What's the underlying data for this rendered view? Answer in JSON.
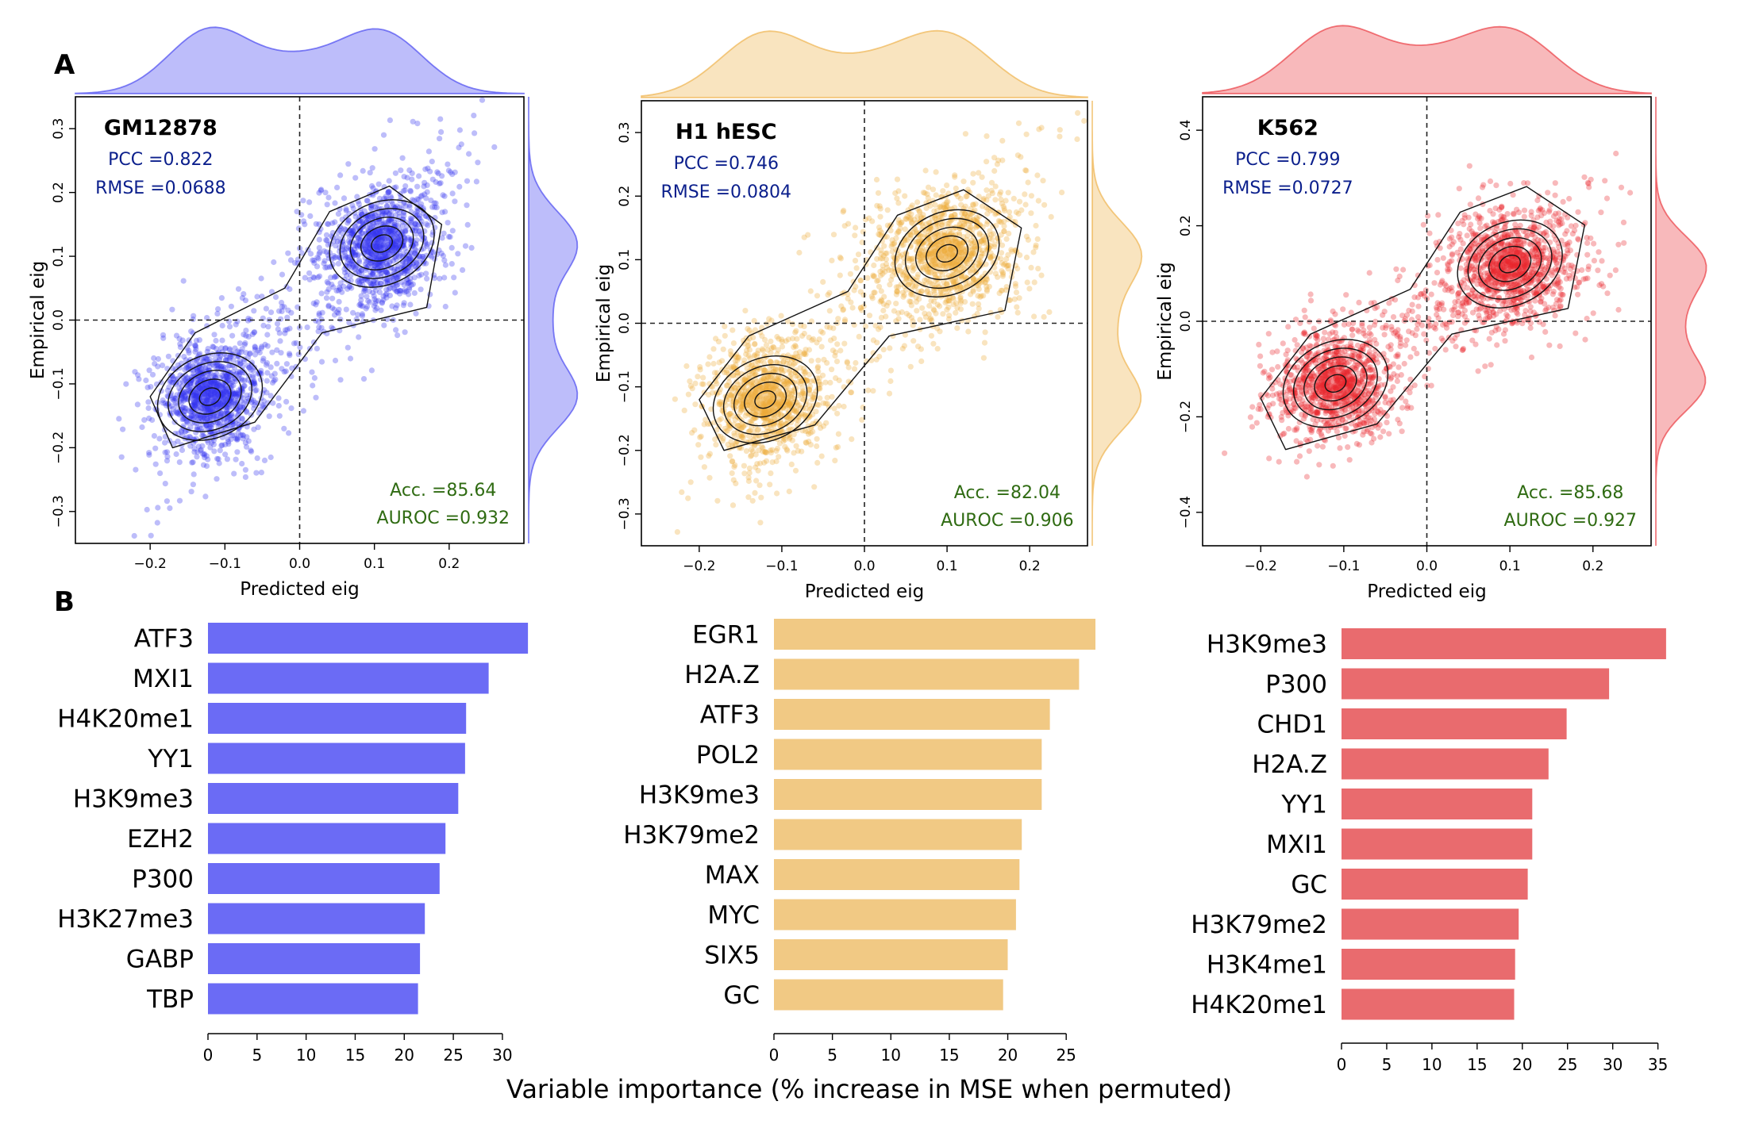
{
  "panel_labels": {
    "a": "A",
    "b": "B"
  },
  "global_xlabel": "Variable importance (% increase in MSE when permuted)",
  "colors": {
    "gm12878": "#3333ee",
    "h1hesc": "#ecaa38",
    "k562": "#e8252b",
    "gm12878_bar": "#6b6bf5",
    "h1hesc_bar": "#f1c984",
    "k562_bar": "#e96b6e",
    "metric_text": "#0b1f8c",
    "acc_text": "#2f6b12"
  },
  "scatter_panels": [
    {
      "title": "GM12878",
      "pcc_label": "PCC =0.822",
      "rmse_label": "RMSE =0.0688",
      "acc_label": "Acc. =85.64",
      "auroc_label": "AUROC =0.932",
      "xlabel": "Predicted eig",
      "ylabel": "Empirical eig",
      "xticks": [
        "−0.2",
        "−0.1",
        "0.0",
        "0.1",
        "0.2"
      ],
      "yticks": [
        "−0.3",
        "−0.2",
        "−0.1",
        "0.0",
        "0.1",
        "0.2",
        "0.3"
      ]
    },
    {
      "title": "H1 hESC",
      "pcc_label": "PCC =0.746",
      "rmse_label": "RMSE =0.0804",
      "acc_label": "Acc. =82.04",
      "auroc_label": "AUROC =0.906",
      "xlabel": "Predicted eig",
      "ylabel": "Empirical eig",
      "xticks": [
        "−0.2",
        "−0.1",
        "0.0",
        "0.1",
        "0.2"
      ],
      "yticks": [
        "−0.3",
        "−0.2",
        "−0.1",
        "0.0",
        "0.1",
        "0.2",
        "0.3"
      ]
    },
    {
      "title": "K562",
      "pcc_label": "PCC =0.799",
      "rmse_label": "RMSE =0.0727",
      "acc_label": "Acc. =85.68",
      "auroc_label": "AUROC =0.927",
      "xlabel": "Predicted eig",
      "ylabel": "Empirical eig",
      "xticks": [
        "−0.2",
        "−0.1",
        "0.0",
        "0.1",
        "0.2"
      ],
      "yticks": [
        "−0.4",
        "−0.2",
        "0.0",
        "0.2",
        "0.4"
      ]
    }
  ],
  "chart_data": [
    {
      "type": "scatter",
      "title": "GM12878",
      "xlabel": "Predicted eig",
      "ylabel": "Empirical eig",
      "xlim": [
        -0.3,
        0.3
      ],
      "ylim": [
        -0.35,
        0.35
      ],
      "pcc": 0.822,
      "rmse": 0.0688,
      "accuracy": 85.64,
      "auroc": 0.932,
      "clusters": [
        {
          "center": [
            -0.12,
            -0.12
          ],
          "sd": [
            0.035,
            0.035
          ]
        },
        {
          "center": [
            0.11,
            0.12
          ],
          "sd": [
            0.04,
            0.04
          ]
        }
      ],
      "reference_lines": {
        "x": 0,
        "y": 0
      }
    },
    {
      "type": "scatter",
      "title": "H1 hESC",
      "xlabel": "Predicted eig",
      "ylabel": "Empirical eig",
      "xlim": [
        -0.27,
        0.27
      ],
      "ylim": [
        -0.35,
        0.35
      ],
      "pcc": 0.746,
      "rmse": 0.0804,
      "accuracy": 82.04,
      "auroc": 0.906,
      "clusters": [
        {
          "center": [
            -0.12,
            -0.12
          ],
          "sd": [
            0.035,
            0.04
          ]
        },
        {
          "center": [
            0.1,
            0.11
          ],
          "sd": [
            0.045,
            0.04
          ]
        }
      ],
      "reference_lines": {
        "x": 0,
        "y": 0
      }
    },
    {
      "type": "scatter",
      "title": "K562",
      "xlabel": "Predicted eig",
      "ylabel": "Empirical eig",
      "xlim": [
        -0.27,
        0.27
      ],
      "ylim": [
        -0.47,
        0.47
      ],
      "pcc": 0.799,
      "rmse": 0.0727,
      "accuracy": 85.68,
      "auroc": 0.927,
      "clusters": [
        {
          "center": [
            -0.11,
            -0.13
          ],
          "sd": [
            0.035,
            0.05
          ]
        },
        {
          "center": [
            0.1,
            0.12
          ],
          "sd": [
            0.04,
            0.05
          ]
        }
      ],
      "reference_lines": {
        "x": 0,
        "y": 0
      }
    },
    {
      "type": "bar",
      "orientation": "horizontal",
      "categories": [
        "ATF3",
        "MXI1",
        "H4K20me1",
        "YY1",
        "H3K9me3",
        "EZH2",
        "P300",
        "H3K27me3",
        "GABP",
        "TBP"
      ],
      "values": [
        32.6,
        28.6,
        26.3,
        26.2,
        25.5,
        24.2,
        23.6,
        22.1,
        21.6,
        21.4
      ],
      "xticks": [
        "0",
        "5",
        "10",
        "15",
        "20",
        "25",
        "30"
      ],
      "xlim": [
        0,
        33
      ],
      "color": "#6b6bf5"
    },
    {
      "type": "bar",
      "orientation": "horizontal",
      "categories": [
        "EGR1",
        "H2A.Z",
        "ATF3",
        "POL2",
        "H3K9me3",
        "H3K79me2",
        "MAX",
        "MYC",
        "SIX5",
        "GC"
      ],
      "values": [
        27.5,
        26.1,
        23.6,
        22.9,
        22.9,
        21.2,
        21.0,
        20.7,
        20.0,
        19.6
      ],
      "xticks": [
        "0",
        "5",
        "10",
        "15",
        "20",
        "25"
      ],
      "xlim": [
        0,
        27.5
      ],
      "color": "#f1c984"
    },
    {
      "type": "bar",
      "orientation": "horizontal",
      "categories": [
        "H3K9me3",
        "P300",
        "CHD1",
        "H2A.Z",
        "YY1",
        "MXI1",
        "GC",
        "H3K79me2",
        "H3K4me1",
        "H4K20me1"
      ],
      "values": [
        35.9,
        29.6,
        24.9,
        22.9,
        21.1,
        21.1,
        20.6,
        19.6,
        19.2,
        19.1
      ],
      "xticks": [
        "0",
        "5",
        "10",
        "15",
        "20",
        "25",
        "30",
        "35"
      ],
      "xlim": [
        0,
        36
      ],
      "color": "#e96b6e"
    }
  ]
}
